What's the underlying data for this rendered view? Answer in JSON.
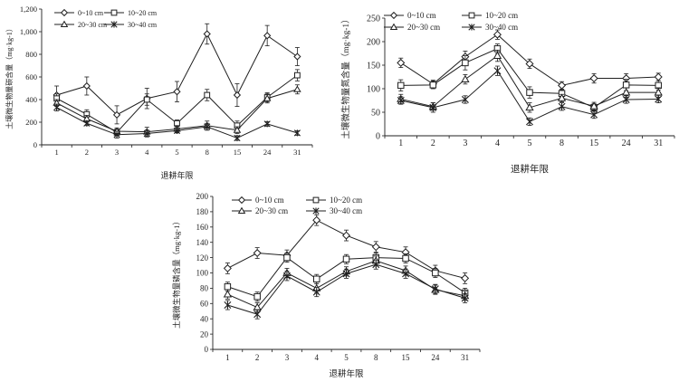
{
  "colors": {
    "ink": "#1f1f1f",
    "background": "#ffffff"
  },
  "legend_labels": [
    "0~10 cm",
    "10~20 cm",
    "20~30 cm",
    "30~40 cm"
  ],
  "legend_markers": [
    "diamond",
    "square",
    "triangle",
    "star"
  ],
  "chart_data": [
    {
      "type": "line",
      "id": "carbon",
      "ylabel": "土壤微生物量碳含量（mg·kg-1）",
      "xlabel": "退耕年限",
      "categories": [
        "1",
        "2",
        "3",
        "4",
        "5",
        "8",
        "15",
        "24",
        "31"
      ],
      "ylim": [
        0,
        1200
      ],
      "yticks": [
        0,
        200,
        400,
        600,
        800,
        1000,
        1200
      ],
      "ytick_labels": [
        "0",
        "200",
        "400",
        "600",
        "800",
        "1,000",
        "1,200"
      ],
      "legend_position": "top-left",
      "series": [
        {
          "name": "0~10 cm",
          "marker": "diamond",
          "values": [
            440,
            520,
            265,
            410,
            470,
            980,
            440,
            965,
            780
          ],
          "errors": [
            80,
            80,
            80,
            90,
            90,
            90,
            100,
            90,
            80
          ]
        },
        {
          "name": "10~20 cm",
          "marker": "square",
          "values": [
            410,
            270,
            110,
            400,
            190,
            440,
            170,
            420,
            615
          ],
          "errors": [
            40,
            40,
            30,
            50,
            30,
            50,
            40,
            40,
            50
          ]
        },
        {
          "name": "20~30 cm",
          "marker": "triangle",
          "values": [
            370,
            230,
            120,
            115,
            140,
            170,
            130,
            410,
            490
          ],
          "errors": [
            30,
            30,
            30,
            40,
            30,
            40,
            30,
            40,
            40
          ]
        },
        {
          "name": "30~40 cm",
          "marker": "star",
          "values": [
            330,
            190,
            90,
            100,
            125,
            160,
            60,
            185,
            105
          ],
          "errors": [
            30,
            20,
            30,
            30,
            20,
            30,
            20,
            20,
            20
          ]
        }
      ]
    },
    {
      "type": "line",
      "id": "nitrogen",
      "ylabel": "土壤微生物量氮含量（mg·kg-1）",
      "xlabel": "退耕年限",
      "categories": [
        "1",
        "2",
        "3",
        "4",
        "5",
        "8",
        "15",
        "24",
        "31"
      ],
      "ylim": [
        0,
        250
      ],
      "yticks": [
        0,
        50,
        100,
        150,
        200,
        250
      ],
      "ytick_labels": [
        "0",
        "50",
        "100",
        "150",
        "200",
        "250"
      ],
      "legend_position": "top",
      "series": [
        {
          "name": "0~10 cm",
          "marker": "diamond",
          "values": [
            155,
            110,
            168,
            215,
            153,
            107,
            122,
            122,
            125
          ],
          "errors": [
            10,
            8,
            12,
            10,
            10,
            8,
            10,
            10,
            8
          ]
        },
        {
          "name": "10~20 cm",
          "marker": "square",
          "values": [
            107,
            108,
            155,
            185,
            92,
            90,
            60,
            108,
            107
          ],
          "errors": [
            12,
            8,
            15,
            10,
            12,
            8,
            8,
            12,
            10
          ]
        },
        {
          "name": "20~30 cm",
          "marker": "triangle",
          "values": [
            78,
            62,
            120,
            170,
            60,
            80,
            63,
            92,
            92
          ],
          "errors": [
            10,
            8,
            10,
            12,
            10,
            8,
            8,
            10,
            10
          ]
        },
        {
          "name": "30~40 cm",
          "marker": "star",
          "values": [
            75,
            60,
            77,
            138,
            30,
            62,
            45,
            77,
            78
          ],
          "errors": [
            8,
            10,
            8,
            10,
            8,
            8,
            8,
            8,
            8
          ]
        }
      ]
    },
    {
      "type": "line",
      "id": "phosphorus",
      "ylabel": "土壤微生物量磷含量（mg·kg-1）",
      "xlabel": "退耕年限",
      "categories": [
        "1",
        "2",
        "3",
        "4",
        "5",
        "8",
        "15",
        "24",
        "31"
      ],
      "ylim": [
        0,
        200
      ],
      "yticks": [
        0,
        20,
        40,
        60,
        80,
        100,
        120,
        140,
        160,
        180,
        200
      ],
      "ytick_labels": [
        "0",
        "20",
        "40",
        "60",
        "80",
        "100",
        "120",
        "140",
        "160",
        "180",
        "200"
      ],
      "legend_position": "top",
      "series": [
        {
          "name": "0~10 cm",
          "marker": "diamond",
          "values": [
            106,
            126,
            123,
            169,
            149,
            134,
            127,
            103,
            93
          ],
          "errors": [
            7,
            7,
            7,
            7,
            7,
            7,
            7,
            7,
            7
          ]
        },
        {
          "name": "10~20 cm",
          "marker": "square",
          "values": [
            82,
            69,
            120,
            92,
            118,
            120,
            119,
            100,
            74
          ],
          "errors": [
            6,
            6,
            6,
            6,
            6,
            6,
            6,
            6,
            6
          ]
        },
        {
          "name": "20~30 cm",
          "marker": "triangle",
          "values": [
            72,
            55,
            100,
            80,
            102,
            116,
            103,
            78,
            70
          ],
          "errors": [
            6,
            6,
            6,
            6,
            6,
            6,
            6,
            6,
            6
          ]
        },
        {
          "name": "30~40 cm",
          "marker": "star",
          "values": [
            58,
            46,
            96,
            75,
            99,
            111,
            99,
            79,
            67
          ],
          "errors": [
            6,
            6,
            6,
            6,
            6,
            6,
            6,
            6,
            6
          ]
        }
      ]
    }
  ]
}
